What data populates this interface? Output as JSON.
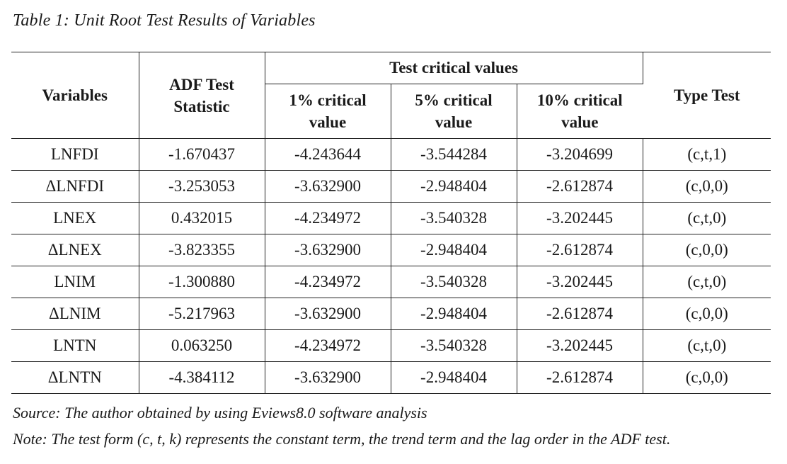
{
  "caption": "Table 1: Unit Root Test Results of Variables",
  "table": {
    "header": {
      "variables": "Variables",
      "adf_line1": "ADF Test",
      "adf_line2": "Statistic",
      "group": "Test critical values",
      "cv1_line1": "1% critical",
      "cv1_line2": "value",
      "cv5_line1": "5% critical",
      "cv5_line2": "value",
      "cv10_line1": "10% critical",
      "cv10_line2": "value",
      "type": "Type Test"
    },
    "rows": [
      [
        "LNFDI",
        "-1.670437",
        "-4.243644",
        "-3.544284",
        "-3.204699",
        "(c,t,1)"
      ],
      [
        "ΔLNFDI",
        "-3.253053",
        "-3.632900",
        "-2.948404",
        "-2.612874",
        "(c,0,0)"
      ],
      [
        "LNEX",
        "0.432015",
        "-4.234972",
        "-3.540328",
        "-3.202445",
        "(c,t,0)"
      ],
      [
        "ΔLNEX",
        "-3.823355",
        "-3.632900",
        "-2.948404",
        "-2.612874",
        "(c,0,0)"
      ],
      [
        "LNIM",
        "-1.300880",
        "-4.234972",
        "-3.540328",
        "-3.202445",
        "(c,t,0)"
      ],
      [
        "ΔLNIM",
        "-5.217963",
        "-3.632900",
        "-2.948404",
        "-2.612874",
        "(c,0,0)"
      ],
      [
        "LNTN",
        "0.063250",
        "-4.234972",
        "-3.540328",
        "-3.202445",
        "(c,t,0)"
      ],
      [
        "ΔLNTN",
        "-4.384112",
        "-3.632900",
        "-2.948404",
        "-2.612874",
        "(c,0,0)"
      ]
    ]
  },
  "source": "Source: The author obtained by using Eviews8.0 software analysis",
  "note": "Note: The test form (c, t, k) represents the constant term, the trend term and the lag order in the ADF test."
}
